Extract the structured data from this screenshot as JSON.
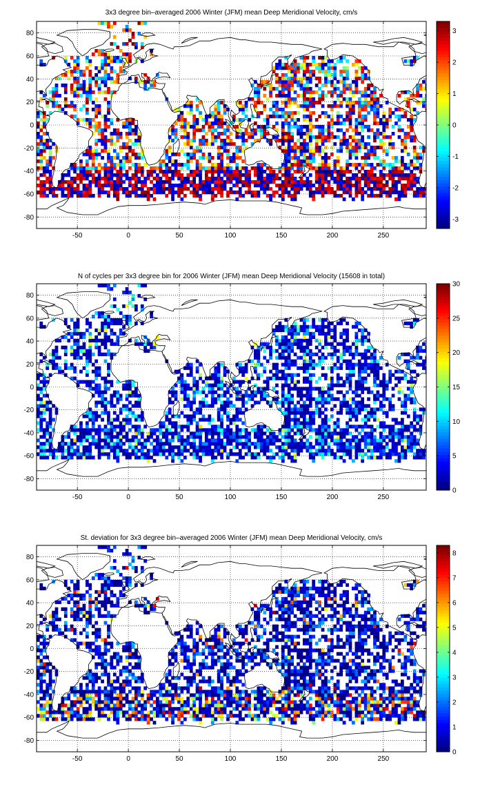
{
  "chart_data": [
    {
      "type": "heatmap",
      "title": "3x3 degree bin–averaged 2006 Winter (JFM) mean Deep Meridional Velocity, cm/s",
      "xlim": [
        -90,
        292
      ],
      "ylim": [
        -90,
        90
      ],
      "xticks": [
        -50,
        0,
        50,
        100,
        150,
        200,
        250
      ],
      "yticks": [
        80,
        60,
        40,
        20,
        0,
        -20,
        -40,
        -60,
        -80
      ],
      "grid": true,
      "colorbar": {
        "min": -3.3,
        "max": 3.3,
        "ticks": [
          3,
          2,
          1,
          0,
          -1,
          -2,
          -3
        ]
      },
      "colormap": "jet",
      "seed": 11,
      "field": "velocity"
    },
    {
      "type": "heatmap",
      "title": "N of cycles per 3x3 degree bin for 2006 Winter (JFM) mean Deep Meridional Velocity (15608 in total)",
      "xlim": [
        -90,
        292
      ],
      "ylim": [
        -90,
        90
      ],
      "xticks": [
        -50,
        0,
        50,
        100,
        150,
        200,
        250
      ],
      "yticks": [
        80,
        60,
        40,
        20,
        0,
        -20,
        -40,
        -60,
        -80
      ],
      "grid": true,
      "colorbar": {
        "min": 0,
        "max": 30,
        "ticks": [
          30,
          25,
          20,
          15,
          10,
          5,
          0
        ]
      },
      "colormap": "jet",
      "seed": 11,
      "field": "count"
    },
    {
      "type": "heatmap",
      "title": "St. deviation for 3x3 degree bin–averaged 2006 Winter (JFM) mean Deep Meridional Velocity, cm/s",
      "xlim": [
        -90,
        292
      ],
      "ylim": [
        -90,
        90
      ],
      "xticks": [
        -50,
        0,
        50,
        100,
        150,
        200,
        250
      ],
      "yticks": [
        80,
        60,
        40,
        20,
        0,
        -20,
        -40,
        -60,
        -80
      ],
      "grid": true,
      "colorbar": {
        "min": 0,
        "max": 8.3,
        "ticks": [
          8,
          7,
          6,
          5,
          4,
          3,
          2,
          1,
          0
        ]
      },
      "colormap": "jet",
      "seed": 11,
      "field": "std"
    }
  ]
}
